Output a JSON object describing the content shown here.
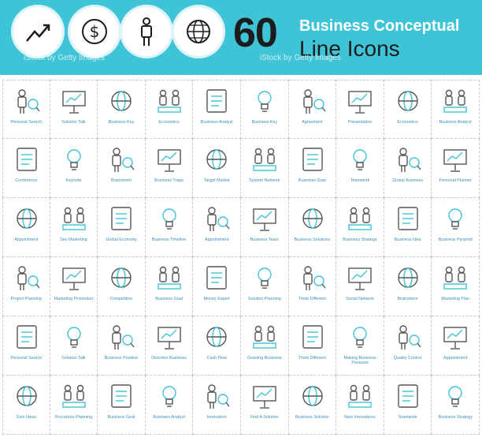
{
  "header": {
    "number": "60",
    "title_line1": "Business Conceptual",
    "title_line2": "Line Icons",
    "watermark_text": "iStock",
    "watermark_credit": "by Getty Images",
    "circle_icons": [
      "growth-chart-icon",
      "dollar-icon",
      "person-icon",
      "globe-icon"
    ],
    "accent_color": "#3fc3d6",
    "dark_color": "#1c1c1c"
  },
  "icons": [
    {
      "label": "Personal Search",
      "icon": "person-magnifier-icon"
    },
    {
      "label": "Solution Talk",
      "icon": "person-talk-icon"
    },
    {
      "label": "Business Key",
      "icon": "people-key-icon"
    },
    {
      "label": "Economics",
      "icon": "person-weight-icon"
    },
    {
      "label": "Business Analyst",
      "icon": "person-chart-icon"
    },
    {
      "label": "Business Key",
      "icon": "person-key-icon"
    },
    {
      "label": "Agreement",
      "icon": "contract-pen-icon"
    },
    {
      "label": "Presentation",
      "icon": "presentation-board-icon"
    },
    {
      "label": "Economics",
      "icon": "person-dollar-icon"
    },
    {
      "label": "Business Analyst",
      "icon": "stairs-runner-icon"
    },
    {
      "label": "Conference",
      "icon": "podium-icon"
    },
    {
      "label": "Keynote",
      "icon": "keynote-screen-icon"
    },
    {
      "label": "Brainstorm",
      "icon": "brainstorm-heads-icon"
    },
    {
      "label": "Business Traps",
      "icon": "money-trap-icon"
    },
    {
      "label": "Target Market",
      "icon": "target-icon"
    },
    {
      "label": "System Network",
      "icon": "person-network-icon"
    },
    {
      "label": "Business Goal",
      "icon": "person-flag-icon"
    },
    {
      "label": "Teamwork",
      "icon": "team-carry-icon"
    },
    {
      "label": "Global Business",
      "icon": "globe-arrows-icon"
    },
    {
      "label": "Personal Planner",
      "icon": "id-card-icon"
    },
    {
      "label": "Appointment",
      "icon": "person-clock-icon"
    },
    {
      "label": "Seo Marketing",
      "icon": "desk-computer-icon"
    },
    {
      "label": "Global Economy",
      "icon": "hand-globe-icon"
    },
    {
      "label": "Business Timeline",
      "icon": "hourglass-person-icon"
    },
    {
      "label": "Appointment",
      "icon": "gears-person-icon"
    },
    {
      "label": "Business Team",
      "icon": "team-growth-icon"
    },
    {
      "label": "Business Solutions",
      "icon": "stairs-climb-icon"
    },
    {
      "label": "Business Strategy",
      "icon": "globe-rider-icon"
    },
    {
      "label": "Business Idea",
      "icon": "head-puzzle-icon"
    },
    {
      "label": "Business Pyramid",
      "icon": "hand-pyramid-icon"
    },
    {
      "label": "Project Planning",
      "icon": "chart-board-icon"
    },
    {
      "label": "Marketing Promotion",
      "icon": "megaphone-icon"
    },
    {
      "label": "Competition",
      "icon": "podium-winners-icon"
    },
    {
      "label": "Business Goal",
      "icon": "trophy-person-icon"
    },
    {
      "label": "Money Expert",
      "icon": "money-arrows-icon"
    },
    {
      "label": "Solution Planning",
      "icon": "push-blocks-icon"
    },
    {
      "label": "Think Different",
      "icon": "crowd-heads-icon"
    },
    {
      "label": "Social Network",
      "icon": "laptop-network-icon"
    },
    {
      "label": "Brainstorm",
      "icon": "group-idea-icon"
    },
    {
      "label": "Marketing Plan",
      "icon": "pie-chart-icon"
    },
    {
      "label": "Personal Search",
      "icon": "magnifier-person-icon"
    },
    {
      "label": "Solution Talk",
      "icon": "meeting-board-icon"
    },
    {
      "label": "Business Position",
      "icon": "triangle-team-icon"
    },
    {
      "label": "Direction Business",
      "icon": "kite-icon"
    },
    {
      "label": "Cash Flow",
      "icon": "hand-cash-icon"
    },
    {
      "label": "Growing Business",
      "icon": "person-plant-icon"
    },
    {
      "label": "Think Different",
      "icon": "heads-row-icon"
    },
    {
      "label": "Making Business Personal",
      "icon": "standing-person-icon"
    },
    {
      "label": "Quality Control",
      "icon": "checklist-icon"
    },
    {
      "label": "Appointment",
      "icon": "org-chart-icon"
    },
    {
      "label": "Give Ideas",
      "icon": "person-gift-icon"
    },
    {
      "label": "Procedure Planning",
      "icon": "push-block-icon"
    },
    {
      "label": "Business Goal",
      "icon": "trophy-icon"
    },
    {
      "label": "Business Analyst",
      "icon": "chart-down-icon"
    },
    {
      "label": "Innovation",
      "icon": "lightbulb-icon"
    },
    {
      "label": "Find A Solution",
      "icon": "window-magnifier-icon"
    },
    {
      "label": "Business Solution",
      "icon": "door-exit-icon"
    },
    {
      "label": "New Innovations",
      "icon": "telescope-icon"
    },
    {
      "label": "Teamwork",
      "icon": "puzzle-team-icon"
    },
    {
      "label": "Business Strategy",
      "icon": "chess-icon"
    }
  ]
}
